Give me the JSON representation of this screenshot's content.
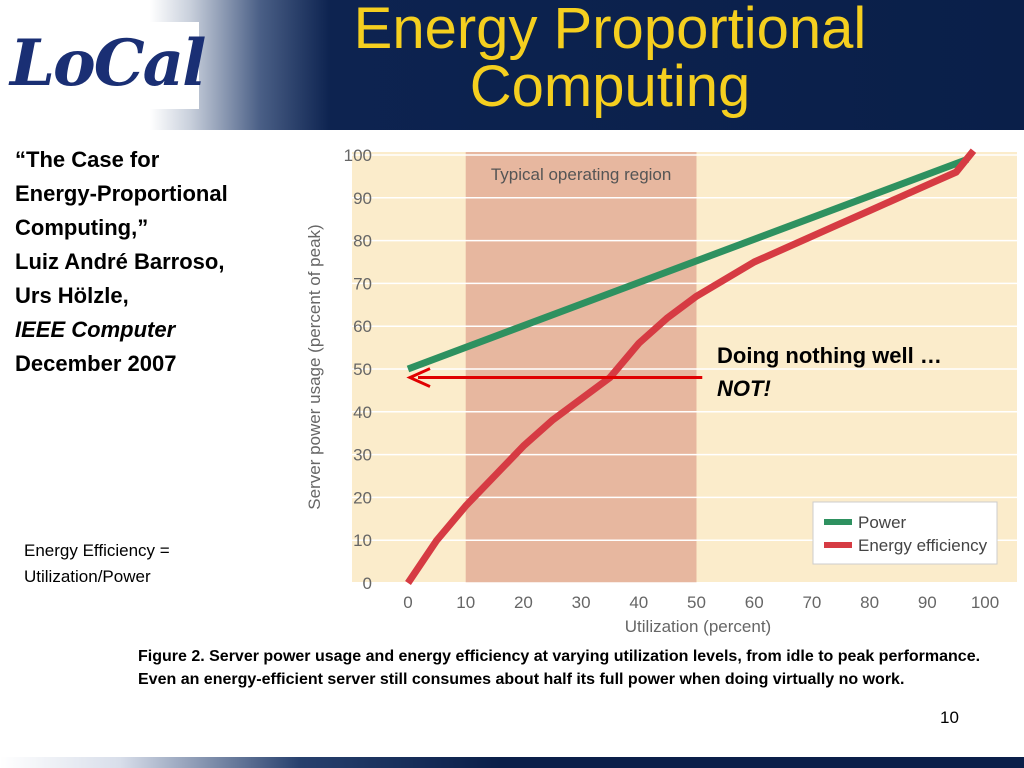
{
  "header": {
    "logo_text": "LoCal",
    "title_line1": "Energy Proportional",
    "title_line2": "Computing"
  },
  "reference": {
    "line1": "“The Case for",
    "line2": "Energy-Proportional",
    "line3": "Computing,”",
    "line4": "Luiz André Barroso,",
    "line5": "Urs Hölzle,",
    "line6": "IEEE Computer",
    "line7": "December 2007"
  },
  "formula": {
    "line1": "Energy Efficiency =",
    "line2": "Utilization/Power"
  },
  "chart_data": {
    "type": "line",
    "xlabel": "Utilization (percent)",
    "ylabel": "Server power usage (percent of peak)",
    "xlim": [
      0,
      100
    ],
    "ylim": [
      0,
      100
    ],
    "xticks": [
      0,
      10,
      20,
      30,
      40,
      50,
      60,
      70,
      80,
      90,
      100
    ],
    "yticks": [
      0,
      10,
      20,
      30,
      40,
      50,
      60,
      70,
      80,
      90,
      100
    ],
    "grid": "horizontal",
    "region": {
      "label": "Typical operating region",
      "x_start": 10,
      "x_end": 50
    },
    "series": [
      {
        "name": "Power",
        "color": "#2e9160",
        "x": [
          0,
          97
        ],
        "y": [
          50,
          99
        ]
      },
      {
        "name": "Energy efficiency",
        "color": "#d63b43",
        "x": [
          0,
          5,
          10,
          15,
          20,
          25,
          30,
          35,
          40,
          45,
          50,
          55,
          60,
          65,
          70,
          75,
          80,
          85,
          90,
          95,
          98
        ],
        "y": [
          0,
          10,
          18,
          25,
          32,
          38,
          43,
          48,
          56,
          62,
          67,
          71,
          75,
          78,
          81,
          84,
          87,
          90,
          93,
          96,
          101
        ]
      }
    ],
    "legend": "bottom-right",
    "annotation": {
      "line1": "Doing nothing well …",
      "line2": "NOT!",
      "arrow_color": "#e00000",
      "arrow_from_x": 51,
      "arrow_to_x": 0,
      "arrow_y": 48
    }
  },
  "caption": "Figure 2. Server power usage and energy efficiency at varying utilization levels, from idle to peak performance. Even an energy-efficient server still consumes about half its full power when doing virtually no work.",
  "page_number": "10"
}
